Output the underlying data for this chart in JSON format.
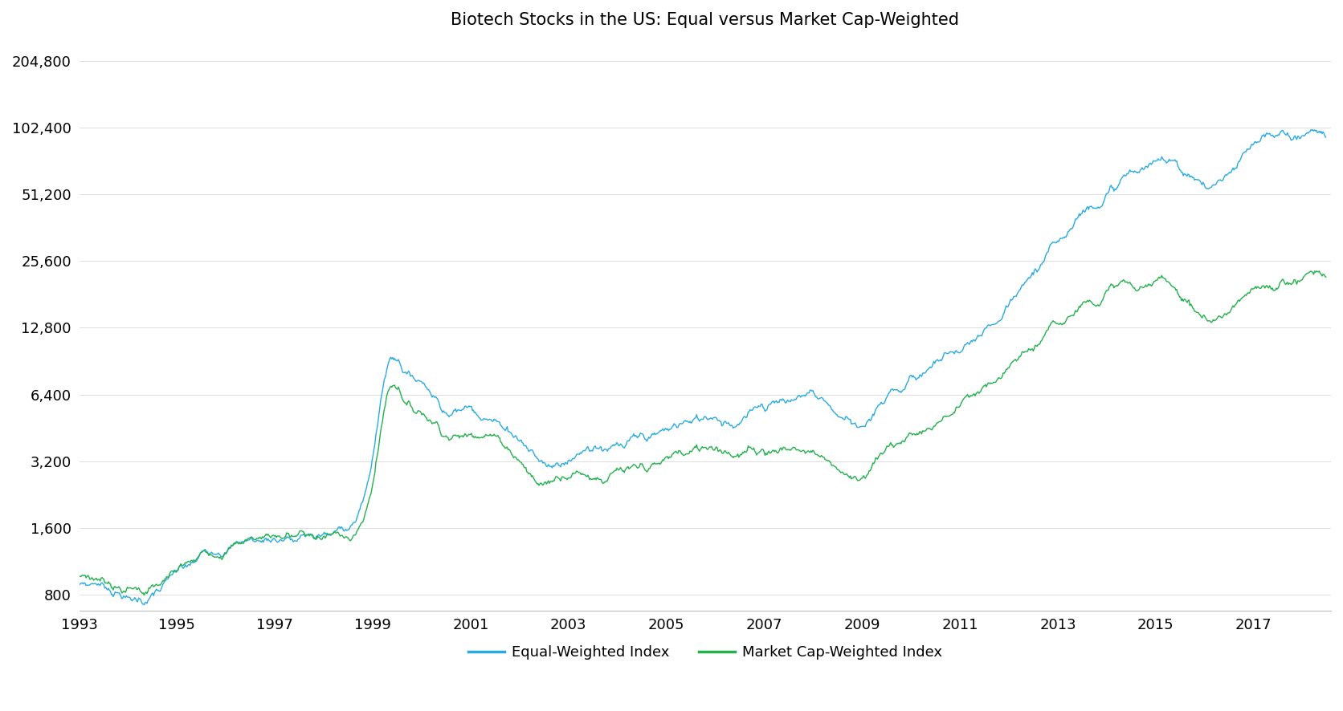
{
  "title": "Biotech Stocks in the US: Equal versus Market Cap-Weighted",
  "equal_color": "#29ABE2",
  "mcap_color": "#22B14C",
  "yticks": [
    800,
    1600,
    3200,
    6400,
    12800,
    25600,
    51200,
    102400,
    204800
  ],
  "ytick_labels": [
    "800",
    "1,600",
    "3,200",
    "6,400",
    "12,800",
    "25,600",
    "51,200",
    "102,400",
    "204,800"
  ],
  "ylim_low": 680,
  "ylim_high": 250000,
  "xticks": [
    1993,
    1995,
    1997,
    1999,
    2001,
    2003,
    2005,
    2007,
    2009,
    2011,
    2013,
    2015,
    2017
  ],
  "legend_equal": "Equal-Weighted Index",
  "legend_mcap": "Market Cap-Weighted Index",
  "line_width": 1.0
}
